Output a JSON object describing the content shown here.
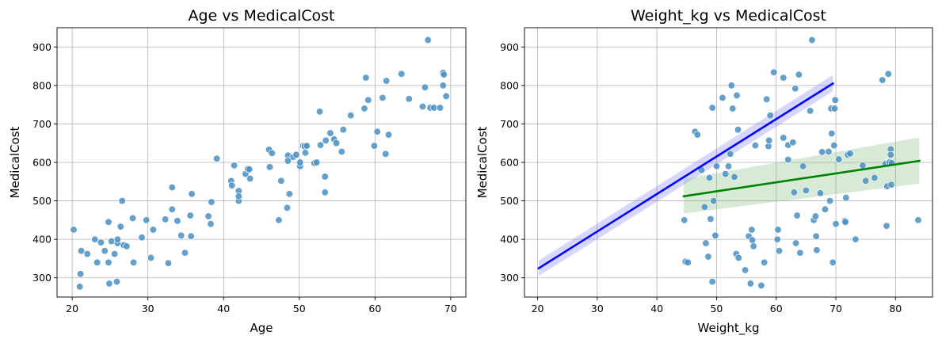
{
  "chart_data": [
    {
      "type": "scatter",
      "title": "Age vs MedicalCost",
      "xlabel": "Age",
      "ylabel": "MedicalCost",
      "xlim": [
        18,
        72
      ],
      "ylim": [
        250,
        950
      ],
      "xticks": [
        20,
        30,
        40,
        50,
        60,
        70
      ],
      "yticks": [
        300,
        400,
        500,
        600,
        700,
        800,
        900
      ],
      "grid": true,
      "point_color": "#4a8fc2",
      "series": [
        {
          "points": [
            [
              20.2,
              425
            ],
            [
              21.0,
              277
            ],
            [
              21.1,
              310
            ],
            [
              21.2,
              370
            ],
            [
              22.0,
              362
            ],
            [
              23.0,
              400
            ],
            [
              23.3,
              340
            ],
            [
              23.8,
              392
            ],
            [
              24.3,
              370
            ],
            [
              24.8,
              340
            ],
            [
              24.8,
              445
            ],
            [
              24.9,
              285
            ],
            [
              25.2,
              395
            ],
            [
              25.6,
              362
            ],
            [
              25.9,
              290
            ],
            [
              26.0,
              390
            ],
            [
              26.0,
              400
            ],
            [
              26.4,
              433
            ],
            [
              26.6,
              500
            ],
            [
              26.8,
              385
            ],
            [
              27.2,
              382
            ],
            [
              28.0,
              455
            ],
            [
              28.1,
              340
            ],
            [
              29.2,
              405
            ],
            [
              29.8,
              450
            ],
            [
              30.4,
              352
            ],
            [
              30.7,
              425
            ],
            [
              32.3,
              452
            ],
            [
              32.7,
              338
            ],
            [
              33.2,
              535
            ],
            [
              33.2,
              478
            ],
            [
              33.9,
              448
            ],
            [
              34.4,
              410
            ],
            [
              34.9,
              365
            ],
            [
              35.6,
              462
            ],
            [
              35.7,
              408
            ],
            [
              35.8,
              518
            ],
            [
              38.0,
              460
            ],
            [
              38.3,
              440
            ],
            [
              38.4,
              497
            ],
            [
              39.1,
              610
            ],
            [
              41.0,
              552
            ],
            [
              41.1,
              540
            ],
            [
              41.4,
              592
            ],
            [
              42.0,
              526
            ],
            [
              42.0,
              500
            ],
            [
              42.0,
              512
            ],
            [
              42.9,
              570
            ],
            [
              43.2,
              583
            ],
            [
              43.4,
              582
            ],
            [
              43.5,
              558
            ],
            [
              46.0,
              633
            ],
            [
              46.1,
              588
            ],
            [
              46.4,
              624
            ],
            [
              47.3,
              450
            ],
            [
              47.6,
              552
            ],
            [
              48.4,
              482
            ],
            [
              48.5,
              618
            ],
            [
              48.5,
              604
            ],
            [
              48.7,
              518
            ],
            [
              49.2,
              614
            ],
            [
              49.6,
              620
            ],
            [
              50.1,
              590
            ],
            [
              50.1,
              600
            ],
            [
              50.5,
              643
            ],
            [
              50.7,
              642
            ],
            [
              50.8,
              625
            ],
            [
              51.0,
              643
            ],
            [
              52.0,
              598
            ],
            [
              52.3,
              600
            ],
            [
              52.7,
              732
            ],
            [
              52.8,
              645
            ],
            [
              53.4,
              563
            ],
            [
              53.4,
              522
            ],
            [
              53.5,
              657
            ],
            [
              54.1,
              676
            ],
            [
              54.6,
              660
            ],
            [
              54.9,
              650
            ],
            [
              55.6,
              628
            ],
            [
              55.8,
              685
            ],
            [
              56.8,
              722
            ],
            [
              58.6,
              740
            ],
            [
              58.8,
              820
            ],
            [
              59.1,
              762
            ],
            [
              59.9,
              643
            ],
            [
              60.3,
              680
            ],
            [
              61.0,
              768
            ],
            [
              61.4,
              622
            ],
            [
              61.5,
              812
            ],
            [
              61.8,
              672
            ],
            [
              63.5,
              830
            ],
            [
              64.5,
              765
            ],
            [
              66.3,
              745
            ],
            [
              66.6,
              795
            ],
            [
              67.0,
              918
            ],
            [
              67.3,
              742
            ],
            [
              67.8,
              742
            ],
            [
              68.6,
              742
            ],
            [
              69.0,
              833
            ],
            [
              69.0,
              800
            ],
            [
              69.1,
              828
            ],
            [
              69.4,
              772
            ]
          ]
        }
      ]
    },
    {
      "type": "scatter",
      "title": "Weight_kg vs MedicalCost",
      "xlabel": "Weight_kg",
      "ylabel": "MedicalCost",
      "xlim": [
        17.8,
        86.2
      ],
      "ylim": [
        250,
        950
      ],
      "xticks": [
        20,
        30,
        40,
        50,
        60,
        70,
        80
      ],
      "yticks": [
        300,
        400,
        500,
        600,
        700,
        800,
        900
      ],
      "grid": true,
      "point_color": "#4a8fc2",
      "series": [
        {
          "points": [
            [
              44.6,
              450
            ],
            [
              44.8,
              342
            ],
            [
              45.2,
              340
            ],
            [
              46.4,
              680
            ],
            [
              46.8,
              672
            ],
            [
              47.5,
              580
            ],
            [
              48.0,
              484
            ],
            [
              48.2,
              390
            ],
            [
              48.6,
              355
            ],
            [
              48.8,
              560
            ],
            [
              49.0,
              453
            ],
            [
              49.3,
              742
            ],
            [
              49.3,
              290
            ],
            [
              49.5,
              500
            ],
            [
              49.8,
              410
            ],
            [
              50.0,
              590
            ],
            [
              51.0,
              768
            ],
            [
              51.5,
              570
            ],
            [
              52.0,
              590
            ],
            [
              52.3,
              622
            ],
            [
              52.5,
              800
            ],
            [
              52.7,
              740
            ],
            [
              53.0,
              562
            ],
            [
              53.3,
              362
            ],
            [
              53.4,
              774
            ],
            [
              53.6,
              685
            ],
            [
              53.7,
              352
            ],
            [
              54.8,
              320
            ],
            [
              55.4,
              408
            ],
            [
              55.7,
              285
            ],
            [
              55.9,
              425
            ],
            [
              56.0,
              398
            ],
            [
              56.2,
              382
            ],
            [
              56.5,
              644
            ],
            [
              57.5,
              280
            ],
            [
              58.0,
              340
            ],
            [
              58.4,
              764
            ],
            [
              58.7,
              642
            ],
            [
              58.8,
              657
            ],
            [
              59.0,
              722
            ],
            [
              59.6,
              834
            ],
            [
              60.2,
              400
            ],
            [
              60.3,
              425
            ],
            [
              60.5,
              370
            ],
            [
              61.2,
              664
            ],
            [
              61.2,
              820
            ],
            [
              62.0,
              607
            ],
            [
              62.0,
              645
            ],
            [
              62.8,
              652
            ],
            [
              63.0,
              522
            ],
            [
              63.2,
              792
            ],
            [
              63.3,
              390
            ],
            [
              63.5,
              462
            ],
            [
              63.8,
              828
            ],
            [
              64.0,
              365
            ],
            [
              64.5,
              590
            ],
            [
              65.0,
              527
            ],
            [
              65.7,
              734
            ],
            [
              66.0,
              918
            ],
            [
              66.3,
              450
            ],
            [
              66.6,
              460
            ],
            [
              66.7,
              408
            ],
            [
              66.8,
              372
            ],
            [
              67.4,
              520
            ],
            [
              67.7,
              627
            ],
            [
              68.2,
              478
            ],
            [
              68.8,
              628
            ],
            [
              69.0,
              500
            ],
            [
              69.2,
              740
            ],
            [
              69.3,
              675
            ],
            [
              69.5,
              340
            ],
            [
              69.7,
              644
            ],
            [
              69.8,
              740
            ],
            [
              69.9,
              762
            ],
            [
              70.0,
              440
            ],
            [
              70.5,
              608
            ],
            [
              71.5,
              448
            ],
            [
              71.6,
              445
            ],
            [
              71.7,
              508
            ],
            [
              72.0,
              620
            ],
            [
              72.4,
              623
            ],
            [
              73.3,
              400
            ],
            [
              74.5,
              592
            ],
            [
              75.0,
              552
            ],
            [
              76.5,
              560
            ],
            [
              77.8,
              814
            ],
            [
              78.3,
              596
            ],
            [
              78.5,
              435
            ],
            [
              78.6,
              538
            ],
            [
              78.8,
              830
            ],
            [
              79.0,
              600
            ],
            [
              79.2,
              634
            ],
            [
              79.2,
              620
            ],
            [
              79.3,
              542
            ],
            [
              79.4,
              598
            ],
            [
              83.8,
              450
            ]
          ]
        }
      ],
      "regression_lines": [
        {
          "color": "#0000ff",
          "band_color": "#8080ff",
          "x": [
            20.2,
            69.5
          ],
          "y": [
            325,
            805
          ],
          "ci_lower": [
            305,
            785
          ],
          "ci_upper": [
            345,
            827
          ]
        },
        {
          "color": "#008000",
          "band_color": "#7fbf7f",
          "x": [
            44.5,
            84
          ],
          "y": [
            512,
            604
          ],
          "ci_lower": [
            467,
            545
          ],
          "ci_upper": [
            557,
            665
          ]
        }
      ]
    }
  ]
}
